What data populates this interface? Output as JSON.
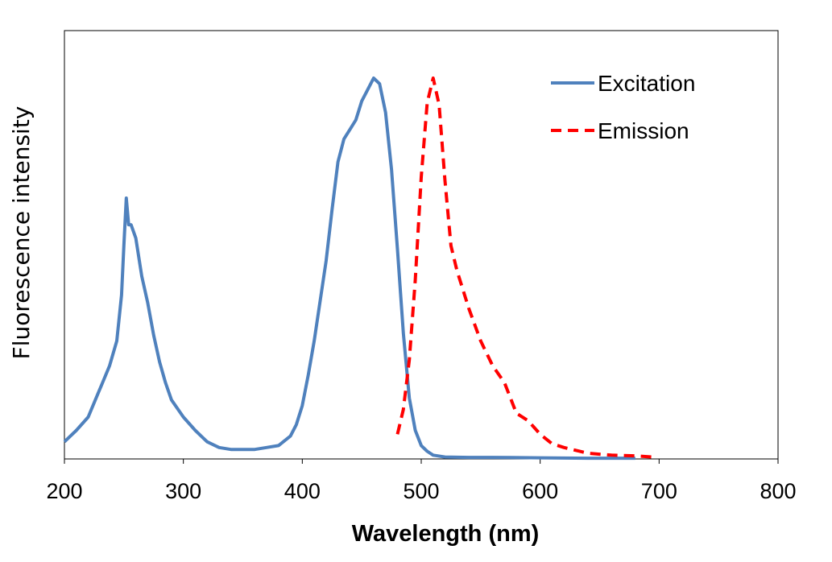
{
  "chart_data": {
    "type": "line",
    "title": "",
    "xlabel": "Wavelength (nm)",
    "ylabel": "Fluorescence intensity",
    "xlim": [
      200,
      800
    ],
    "ylim": [
      0,
      1
    ],
    "x_ticks": [
      200,
      300,
      400,
      500,
      600,
      700,
      800
    ],
    "x_tick_labels": [
      "200",
      "300",
      "400",
      "500",
      "600",
      "700",
      "800"
    ],
    "grid": false,
    "legend_position": "top-right",
    "series": [
      {
        "name": "Excitation",
        "color": "#4F81BD",
        "style": "solid",
        "x": [
          200,
          210,
          220,
          228,
          232,
          238,
          244,
          248,
          250,
          252,
          254,
          256,
          260,
          265,
          270,
          275,
          280,
          285,
          290,
          300,
          310,
          320,
          330,
          340,
          350,
          360,
          370,
          380,
          390,
          395,
          400,
          405,
          410,
          420,
          425,
          430,
          435,
          440,
          445,
          450,
          455,
          460,
          465,
          470,
          475,
          480,
          485,
          490,
          495,
          500,
          505,
          510,
          520,
          540,
          560,
          600,
          640,
          680
        ],
        "y": [
          0.045,
          0.075,
          0.11,
          0.17,
          0.2,
          0.245,
          0.31,
          0.43,
          0.56,
          0.685,
          0.615,
          0.615,
          0.58,
          0.48,
          0.41,
          0.325,
          0.255,
          0.2,
          0.155,
          0.11,
          0.075,
          0.045,
          0.03,
          0.025,
          0.025,
          0.025,
          0.03,
          0.035,
          0.06,
          0.09,
          0.14,
          0.22,
          0.31,
          0.52,
          0.655,
          0.78,
          0.84,
          0.865,
          0.89,
          0.94,
          0.97,
          1.0,
          0.985,
          0.91,
          0.76,
          0.55,
          0.33,
          0.16,
          0.075,
          0.035,
          0.02,
          0.01,
          0.005,
          0.004,
          0.004,
          0.003,
          0.002,
          0.002
        ]
      },
      {
        "name": "Emission",
        "color": "#FF0000",
        "style": "dashed",
        "x": [
          480,
          485,
          490,
          495,
          500,
          505,
          510,
          515,
          520,
          525,
          530,
          540,
          550,
          560,
          570,
          580,
          590,
          600,
          610,
          620,
          640,
          660,
          680,
          695
        ],
        "y": [
          0.065,
          0.13,
          0.26,
          0.47,
          0.74,
          0.935,
          1.0,
          0.93,
          0.73,
          0.56,
          0.495,
          0.395,
          0.31,
          0.245,
          0.2,
          0.12,
          0.1,
          0.065,
          0.04,
          0.03,
          0.015,
          0.01,
          0.008,
          0.005
        ]
      }
    ]
  }
}
